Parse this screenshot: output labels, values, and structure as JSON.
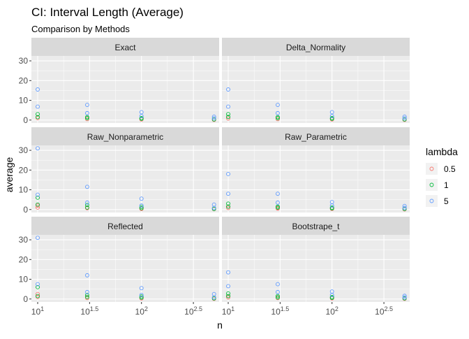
{
  "chart_data": {
    "type": "scatter",
    "title": "CI: Interval Length (Average)",
    "subtitle": "Comparison by Methods",
    "xlabel": "n",
    "ylabel": "average",
    "x_scale": "log10",
    "x_ticks": [
      {
        "value": 10,
        "base": "10",
        "exp": "1"
      },
      {
        "value": 31.62,
        "base": "10",
        "exp": "1.5"
      },
      {
        "value": 100,
        "base": "10",
        "exp": "2"
      },
      {
        "value": 316.23,
        "base": "10",
        "exp": "2.5"
      }
    ],
    "xlim": [
      8.7,
      560
    ],
    "ylim": [
      -1.5,
      32.5
    ],
    "y_ticks": [
      "0",
      "10",
      "20",
      "30"
    ],
    "y_tick_values": [
      0,
      10,
      20,
      30
    ],
    "grid": true,
    "legend": {
      "title": "lambda",
      "placement": "right",
      "entries": [
        {
          "label": "0.5",
          "color": "#F8766D"
        },
        {
          "label": "1",
          "color": "#00BA38"
        },
        {
          "label": "5",
          "color": "#619CFF"
        }
      ]
    },
    "panels": [
      {
        "name": "Exact",
        "series": [
          {
            "lambda": "0.5",
            "points": [
              [
                10,
                1.0
              ],
              [
                30,
                0.5
              ],
              [
                100,
                0.3
              ],
              [
                500,
                0.1
              ]
            ]
          },
          {
            "lambda": "1",
            "points": [
              [
                10,
                1.5
              ],
              [
                10,
                3.0
              ],
              [
                30,
                1.0
              ],
              [
                30,
                1.5
              ],
              [
                100,
                0.7
              ],
              [
                100,
                1.0
              ],
              [
                500,
                0.3
              ]
            ]
          },
          {
            "lambda": "5",
            "points": [
              [
                10,
                6.8
              ],
              [
                10,
                15.5
              ],
              [
                30,
                3.5
              ],
              [
                30,
                7.7
              ],
              [
                100,
                2.0
              ],
              [
                100,
                4.0
              ],
              [
                500,
                0.9
              ],
              [
                500,
                1.7
              ]
            ]
          }
        ]
      },
      {
        "name": "Delta_Normality",
        "series": [
          {
            "lambda": "0.5",
            "points": [
              [
                10,
                0.8
              ],
              [
                30,
                0.5
              ],
              [
                100,
                0.3
              ],
              [
                500,
                0.1
              ]
            ]
          },
          {
            "lambda": "1",
            "points": [
              [
                10,
                1.6
              ],
              [
                10,
                3.0
              ],
              [
                30,
                1.0
              ],
              [
                30,
                1.5
              ],
              [
                100,
                0.7
              ],
              [
                100,
                1.0
              ],
              [
                500,
                0.3
              ]
            ]
          },
          {
            "lambda": "5",
            "points": [
              [
                10,
                6.8
              ],
              [
                10,
                15.5
              ],
              [
                30,
                3.5
              ],
              [
                30,
                7.7
              ],
              [
                100,
                2.0
              ],
              [
                100,
                4.0
              ],
              [
                500,
                0.9
              ],
              [
                500,
                1.7
              ]
            ]
          }
        ]
      },
      {
        "name": "Raw_Nonparametric",
        "series": [
          {
            "lambda": "0.5",
            "points": [
              [
                10,
                1.0
              ],
              [
                10,
                2.0
              ],
              [
                30,
                0.7
              ],
              [
                30,
                1.0
              ],
              [
                100,
                0.3
              ],
              [
                100,
                0.6
              ],
              [
                500,
                0.2
              ]
            ]
          },
          {
            "lambda": "1",
            "points": [
              [
                10,
                2.5
              ],
              [
                10,
                6.0
              ],
              [
                30,
                1.0
              ],
              [
                30,
                2.3
              ],
              [
                100,
                0.7
              ],
              [
                100,
                1.3
              ],
              [
                500,
                0.3
              ]
            ]
          },
          {
            "lambda": "5",
            "points": [
              [
                10,
                7.5
              ],
              [
                10,
                31.0
              ],
              [
                30,
                3.5
              ],
              [
                30,
                11.5
              ],
              [
                100,
                2.0
              ],
              [
                100,
                5.5
              ],
              [
                500,
                0.8
              ],
              [
                500,
                2.5
              ]
            ]
          }
        ]
      },
      {
        "name": "Raw_Parametric",
        "series": [
          {
            "lambda": "0.5",
            "points": [
              [
                10,
                0.8
              ],
              [
                10,
                1.5
              ],
              [
                30,
                0.5
              ],
              [
                30,
                0.8
              ],
              [
                100,
                0.3
              ],
              [
                100,
                0.5
              ],
              [
                500,
                0.1
              ]
            ]
          },
          {
            "lambda": "1",
            "points": [
              [
                10,
                1.5
              ],
              [
                10,
                3.0
              ],
              [
                30,
                1.0
              ],
              [
                30,
                1.5
              ],
              [
                100,
                0.6
              ],
              [
                100,
                1.0
              ],
              [
                500,
                0.3
              ]
            ]
          },
          {
            "lambda": "5",
            "points": [
              [
                10,
                8.0
              ],
              [
                10,
                18.0
              ],
              [
                30,
                3.5
              ],
              [
                30,
                8.0
              ],
              [
                100,
                2.0
              ],
              [
                100,
                3.8
              ],
              [
                500,
                0.8
              ],
              [
                500,
                1.8
              ]
            ]
          }
        ]
      },
      {
        "name": "Reflected",
        "series": [
          {
            "lambda": "0.5",
            "points": [
              [
                10,
                1.0
              ],
              [
                10,
                2.5
              ],
              [
                30,
                0.5
              ],
              [
                30,
                1.0
              ],
              [
                100,
                0.3
              ],
              [
                100,
                0.5
              ],
              [
                500,
                0.1
              ]
            ]
          },
          {
            "lambda": "1",
            "points": [
              [
                10,
                1.5
              ],
              [
                10,
                6.0
              ],
              [
                30,
                1.0
              ],
              [
                30,
                2.0
              ],
              [
                100,
                0.7
              ],
              [
                100,
                1.3
              ],
              [
                500,
                0.3
              ]
            ]
          },
          {
            "lambda": "5",
            "points": [
              [
                10,
                7.5
              ],
              [
                10,
                31.0
              ],
              [
                30,
                3.5
              ],
              [
                30,
                12.0
              ],
              [
                100,
                2.0
              ],
              [
                100,
                5.5
              ],
              [
                500,
                0.8
              ],
              [
                500,
                2.5
              ]
            ]
          }
        ]
      },
      {
        "name": "Bootstrape_t",
        "series": [
          {
            "lambda": "0.5",
            "points": [
              [
                10,
                0.8
              ],
              [
                10,
                1.5
              ],
              [
                30,
                0.5
              ],
              [
                30,
                0.8
              ],
              [
                100,
                0.3
              ],
              [
                100,
                0.5
              ],
              [
                500,
                0.1
              ]
            ]
          },
          {
            "lambda": "1",
            "points": [
              [
                10,
                1.5
              ],
              [
                10,
                2.8
              ],
              [
                30,
                0.8
              ],
              [
                30,
                1.5
              ],
              [
                100,
                0.6
              ],
              [
                100,
                1.0
              ],
              [
                500,
                0.3
              ]
            ]
          },
          {
            "lambda": "5",
            "points": [
              [
                10,
                6.5
              ],
              [
                10,
                13.5
              ],
              [
                30,
                3.5
              ],
              [
                30,
                7.5
              ],
              [
                100,
                2.0
              ],
              [
                100,
                3.8
              ],
              [
                500,
                0.8
              ],
              [
                500,
                1.6
              ]
            ]
          }
        ]
      }
    ]
  }
}
